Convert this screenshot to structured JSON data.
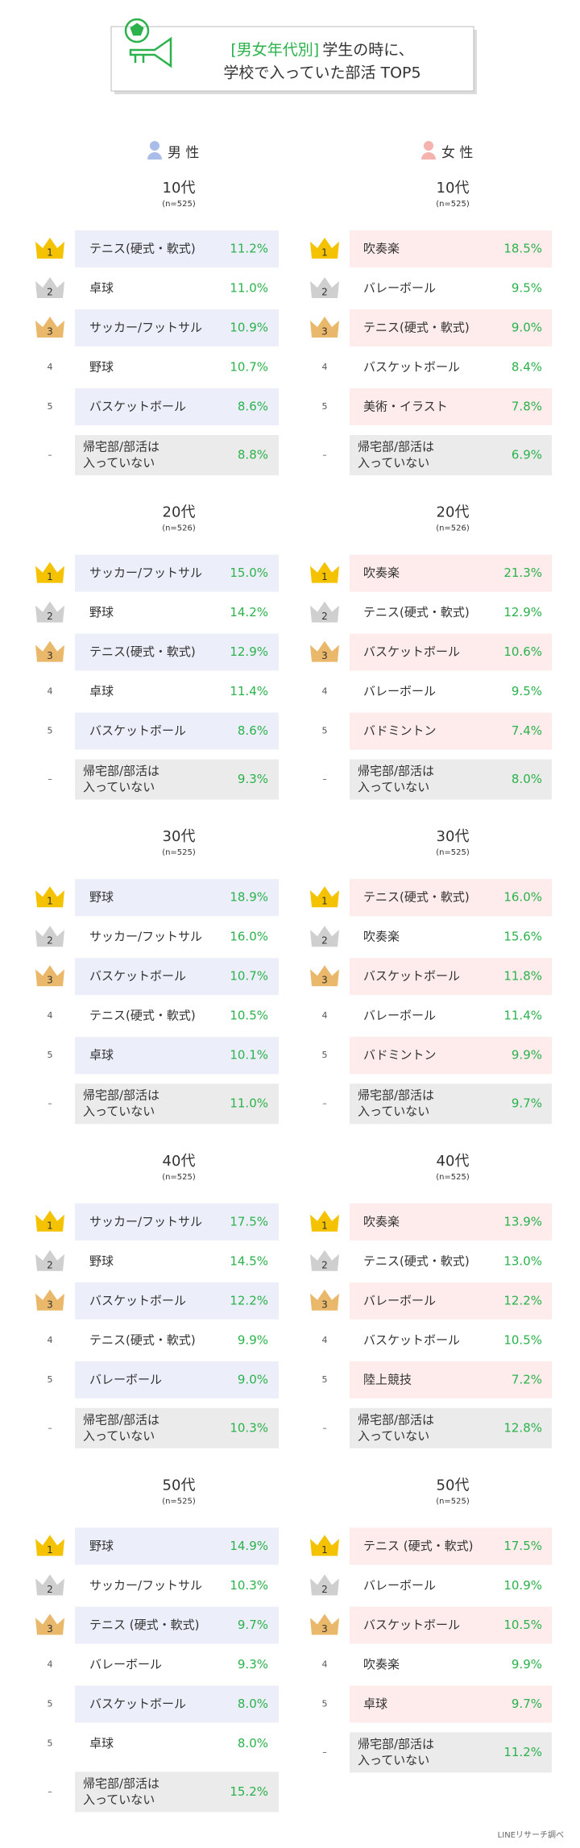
{
  "title": {
    "tag": "[男女年代別]",
    "line1": "学生の時に、",
    "line2": "学校で入っていた部活 TOP5"
  },
  "columns": [
    {
      "label": "男 性",
      "groups": [
        {
          "age": "10代",
          "n": "(n=525)",
          "rows": [
            {
              "rank": "1",
              "club": [
                "テニス(硬式・軟式)"
              ],
              "percent": "11.2%"
            },
            {
              "rank": "2",
              "club": [
                "卓球"
              ],
              "percent": "11.0%"
            },
            {
              "rank": "3",
              "club": [
                "サッカー/フットサル"
              ],
              "percent": "10.9%"
            },
            {
              "rank": "4",
              "club": [
                "野球"
              ],
              "percent": "10.7%"
            },
            {
              "rank": "5",
              "club": [
                "バスケットボール"
              ],
              "percent": "8.6%"
            },
            {
              "rank": "–",
              "club": [
                "帰宅部/部活は",
                "入っていない"
              ],
              "percent": "8.8%"
            }
          ]
        },
        {
          "age": "20代",
          "n": "(n=526)",
          "rows": [
            {
              "rank": "1",
              "club": [
                "サッカー/フットサル"
              ],
              "percent": "15.0%"
            },
            {
              "rank": "2",
              "club": [
                "野球"
              ],
              "percent": "14.2%"
            },
            {
              "rank": "3",
              "club": [
                "テニス(硬式・軟式)"
              ],
              "percent": "12.9%"
            },
            {
              "rank": "4",
              "club": [
                "卓球"
              ],
              "percent": "11.4%"
            },
            {
              "rank": "5",
              "club": [
                "バスケットボール"
              ],
              "percent": "8.6%"
            },
            {
              "rank": "–",
              "club": [
                "帰宅部/部活は",
                "入っていない"
              ],
              "percent": "9.3%"
            }
          ]
        },
        {
          "age": "30代",
          "n": "(n=525)",
          "rows": [
            {
              "rank": "1",
              "club": [
                "野球"
              ],
              "percent": "18.9%"
            },
            {
              "rank": "2",
              "club": [
                "サッカー/フットサル"
              ],
              "percent": "16.0%"
            },
            {
              "rank": "3",
              "club": [
                "バスケットボール"
              ],
              "percent": "10.7%"
            },
            {
              "rank": "4",
              "club": [
                "テニス(硬式・軟式)"
              ],
              "percent": "10.5%"
            },
            {
              "rank": "5",
              "club": [
                "卓球"
              ],
              "percent": "10.1%"
            },
            {
              "rank": "–",
              "club": [
                "帰宅部/部活は",
                "入っていない"
              ],
              "percent": "11.0%"
            }
          ]
        },
        {
          "age": "40代",
          "n": "(n=525)",
          "rows": [
            {
              "rank": "1",
              "club": [
                "サッカー/フットサル"
              ],
              "percent": "17.5%"
            },
            {
              "rank": "2",
              "club": [
                "野球"
              ],
              "percent": "14.5%"
            },
            {
              "rank": "3",
              "club": [
                "バスケットボール"
              ],
              "percent": "12.2%"
            },
            {
              "rank": "4",
              "club": [
                "テニス(硬式・軟式)"
              ],
              "percent": "9.9%"
            },
            {
              "rank": "5",
              "club": [
                "バレーボール"
              ],
              "percent": "9.0%"
            },
            {
              "rank": "–",
              "club": [
                "帰宅部/部活は",
                "入っていない"
              ],
              "percent": "10.3%"
            }
          ]
        },
        {
          "age": "50代",
          "n": "(n=525)",
          "rows": [
            {
              "rank": "1",
              "club": [
                "野球"
              ],
              "percent": "14.9%"
            },
            {
              "rank": "2",
              "club": [
                "サッカー/フットサル"
              ],
              "percent": "10.3%"
            },
            {
              "rank": "3",
              "club": [
                "テニス (硬式・軟式)"
              ],
              "percent": "9.7%"
            },
            {
              "rank": "4",
              "club": [
                "バレーボール"
              ],
              "percent": "9.3%"
            },
            {
              "rank": "5",
              "club": [
                "バスケットボール"
              ],
              "percent": "8.0%"
            },
            {
              "rank": "5",
              "club": [
                "卓球"
              ],
              "percent": "8.0%"
            },
            {
              "rank": "–",
              "club": [
                "帰宅部/部活は",
                "入っていない"
              ],
              "percent": "15.2%"
            }
          ]
        }
      ]
    },
    {
      "label": "女 性",
      "groups": [
        {
          "age": "10代",
          "n": "(n=525)",
          "rows": [
            {
              "rank": "1",
              "club": [
                "吹奏楽"
              ],
              "percent": "18.5%"
            },
            {
              "rank": "2",
              "club": [
                "バレーボール"
              ],
              "percent": "9.5%"
            },
            {
              "rank": "3",
              "club": [
                "テニス(硬式・軟式)"
              ],
              "percent": "9.0%"
            },
            {
              "rank": "4",
              "club": [
                "バスケットボール"
              ],
              "percent": "8.4%"
            },
            {
              "rank": "5",
              "club": [
                "美術・イラスト"
              ],
              "percent": "7.8%"
            },
            {
              "rank": "–",
              "club": [
                "帰宅部/部活は",
                "入っていない"
              ],
              "percent": "6.9%"
            }
          ]
        },
        {
          "age": "20代",
          "n": "(n=526)",
          "rows": [
            {
              "rank": "1",
              "club": [
                "吹奏楽"
              ],
              "percent": "21.3%"
            },
            {
              "rank": "2",
              "club": [
                "テニス(硬式・軟式)"
              ],
              "percent": "12.9%"
            },
            {
              "rank": "3",
              "club": [
                "バスケットボール"
              ],
              "percent": "10.6%"
            },
            {
              "rank": "4",
              "club": [
                "バレーボール"
              ],
              "percent": "9.5%"
            },
            {
              "rank": "5",
              "club": [
                "バドミントン"
              ],
              "percent": "7.4%"
            },
            {
              "rank": "–",
              "club": [
                "帰宅部/部活は",
                "入っていない"
              ],
              "percent": "8.0%"
            }
          ]
        },
        {
          "age": "30代",
          "n": "(n=525)",
          "rows": [
            {
              "rank": "1",
              "club": [
                "テニス(硬式・軟式)"
              ],
              "percent": "16.0%"
            },
            {
              "rank": "2",
              "club": [
                "吹奏楽"
              ],
              "percent": "15.6%"
            },
            {
              "rank": "3",
              "club": [
                "バスケットボール"
              ],
              "percent": "11.8%"
            },
            {
              "rank": "4",
              "club": [
                "バレーボール"
              ],
              "percent": "11.4%"
            },
            {
              "rank": "5",
              "club": [
                "バドミントン"
              ],
              "percent": "9.9%"
            },
            {
              "rank": "–",
              "club": [
                "帰宅部/部活は",
                "入っていない"
              ],
              "percent": "9.7%"
            }
          ]
        },
        {
          "age": "40代",
          "n": "(n=525)",
          "rows": [
            {
              "rank": "1",
              "club": [
                "吹奏楽"
              ],
              "percent": "13.9%"
            },
            {
              "rank": "2",
              "club": [
                "テニス(硬式・軟式)"
              ],
              "percent": "13.0%"
            },
            {
              "rank": "3",
              "club": [
                "バレーボール"
              ],
              "percent": "12.2%"
            },
            {
              "rank": "4",
              "club": [
                "バスケットボール"
              ],
              "percent": "10.5%"
            },
            {
              "rank": "5",
              "club": [
                "陸上競技"
              ],
              "percent": "7.2%"
            },
            {
              "rank": "–",
              "club": [
                "帰宅部/部活は",
                "入っていない"
              ],
              "percent": "12.8%"
            }
          ]
        },
        {
          "age": "50代",
          "n": "(n=525)",
          "rows": [
            {
              "rank": "1",
              "club": [
                "テニス (硬式・軟式)"
              ],
              "percent": "17.5%"
            },
            {
              "rank": "2",
              "club": [
                "バレーボール"
              ],
              "percent": "10.9%"
            },
            {
              "rank": "3",
              "club": [
                "バスケットボール"
              ],
              "percent": "10.5%"
            },
            {
              "rank": "4",
              "club": [
                "吹奏楽"
              ],
              "percent": "9.9%"
            },
            {
              "rank": "5",
              "club": [
                "卓球"
              ],
              "percent": "9.7%"
            },
            {
              "rank": "–",
              "club": [
                "帰宅部/部活は",
                "入っていない"
              ],
              "percent": "11.2%"
            }
          ]
        }
      ]
    }
  ],
  "footer": "LINEリサーチ調べ"
}
